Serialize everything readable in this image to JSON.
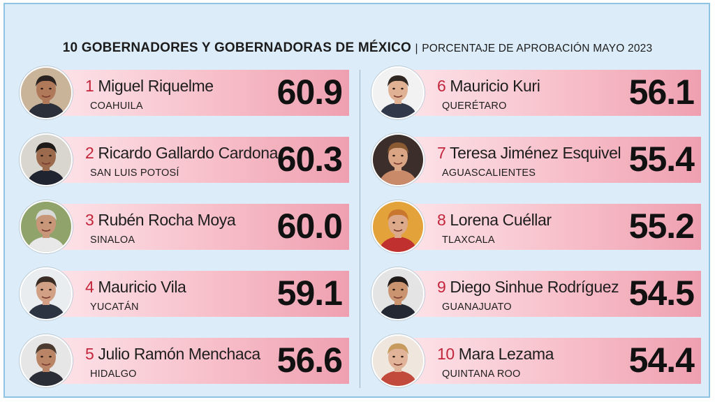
{
  "title": {
    "main": "10 GOBERNADORES Y GOBERNADORAS DE MÉXICO",
    "separator": "|",
    "sub": "PORCENTAJE DE APROBACIÓN MAYO 2023"
  },
  "chart_data": {
    "type": "bar",
    "title": "10 GOBERNADORES Y GOBERNADORAS DE MÉXICO | PORCENTAJE DE APROBACIÓN MAYO 2023",
    "categories": [
      "1 Miguel Riquelme",
      "2 Ricardo Gallardo Cardona",
      "3 Rubén Rocha Moya",
      "4 Mauricio Vila",
      "5 Julio Ramón Menchaca",
      "6 Mauricio Kuri",
      "7 Teresa Jiménez Esquivel",
      "8 Lorena Cuéllar",
      "9 Diego Sinhue Rodríguez",
      "10 Mara Lezama"
    ],
    "values": [
      60.9,
      60.3,
      60.0,
      59.1,
      56.6,
      56.1,
      55.4,
      55.2,
      54.5,
      54.4
    ],
    "items": [
      {
        "rank": "1",
        "name": "Miguel Riquelme",
        "state": "COAHUILA",
        "value": "60.9",
        "photo": {
          "skin": "#b07a5a",
          "hair": "#2a2220",
          "bg": "#c9b49a",
          "shirt": "#2b2f3a"
        }
      },
      {
        "rank": "2",
        "name": "Ricardo Gallardo Cardona",
        "state": "SAN LUIS POTOSÍ",
        "value": "60.3",
        "photo": {
          "skin": "#9c6a4c",
          "hair": "#1d1a1a",
          "bg": "#d9d6cf",
          "shirt": "#1f2430"
        }
      },
      {
        "rank": "3",
        "name": "Rubén Rocha Moya",
        "state": "SINALOA",
        "value": "60.0",
        "photo": {
          "skin": "#c8977a",
          "hair": "#d9d9d9",
          "bg": "#8fa36a",
          "shirt": "#e8e8e8"
        }
      },
      {
        "rank": "4",
        "name": "Mauricio Vila",
        "state": "YUCATÁN",
        "value": "59.1",
        "photo": {
          "skin": "#d2a084",
          "hair": "#3a2c24",
          "bg": "#e9edf0",
          "shirt": "#2c3442"
        }
      },
      {
        "rank": "5",
        "name": "Julio Ramón Menchaca",
        "state": "HIDALGO",
        "value": "56.6",
        "photo": {
          "skin": "#b98566",
          "hair": "#4b3a30",
          "bg": "#e6e6e6",
          "shirt": "#2a2d35"
        }
      },
      {
        "rank": "6",
        "name": "Mauricio Kuri",
        "state": "QUERÉTARO",
        "value": "56.1",
        "photo": {
          "skin": "#e0b193",
          "hair": "#2f2722",
          "bg": "#f2f2f2",
          "shirt": "#30384a"
        }
      },
      {
        "rank": "7",
        "name": "Teresa Jiménez Esquivel",
        "state": "AGUASCALIENTES",
        "value": "55.4",
        "photo": {
          "skin": "#d9a585",
          "hair": "#8a5a32",
          "bg": "#3c2e2a",
          "shirt": "#c98a6a"
        }
      },
      {
        "rank": "8",
        "name": "Lorena Cuéllar",
        "state": "TLAXCALA",
        "value": "55.2",
        "photo": {
          "skin": "#dca98a",
          "hair": "#c9772e",
          "bg": "#e3a23a",
          "shirt": "#c0302f"
        }
      },
      {
        "rank": "9",
        "name": "Diego Sinhue Rodríguez",
        "state": "GUANAJUATO",
        "value": "54.5",
        "photo": {
          "skin": "#c9946f",
          "hair": "#201a18",
          "bg": "#e4e4e4",
          "shirt": "#232833"
        }
      },
      {
        "rank": "10",
        "name": "Mara Lezama",
        "state": "QUINTANA ROO",
        "value": "54.4",
        "photo": {
          "skin": "#e1b49a",
          "hair": "#c79a5e",
          "bg": "#efe6dd",
          "shirt": "#c24a3c"
        }
      }
    ]
  }
}
